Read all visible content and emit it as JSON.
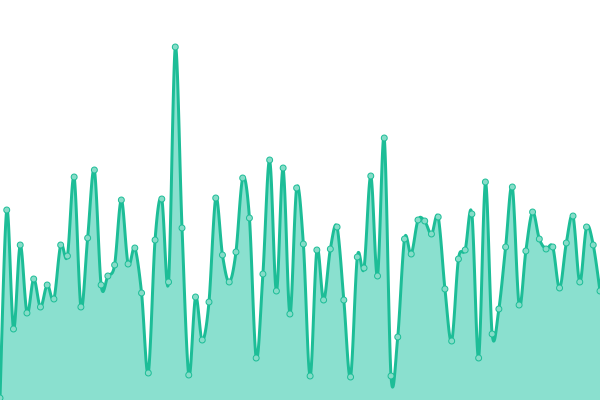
{
  "chart_data": {
    "type": "area",
    "title": "",
    "xlabel": "",
    "ylabel": "",
    "axes_visible": false,
    "grid": false,
    "legend": "none",
    "smooth": true,
    "markers": true,
    "ylim": [
      0,
      400
    ],
    "colors": {
      "line": "#1dbd97",
      "fill": "#8ae0cf",
      "marker_fill": "#86dcc8",
      "marker_stroke": "#1dbd97"
    },
    "values": [
      2,
      190,
      71,
      155,
      87,
      121,
      93,
      115,
      101,
      155,
      144,
      223,
      93,
      162,
      230,
      115,
      124,
      135,
      200,
      136,
      152,
      107,
      27,
      160,
      201,
      118,
      353,
      172,
      25,
      103,
      60,
      98,
      202,
      145,
      118,
      148,
      222,
      182,
      42,
      126,
      240,
      109,
      232,
      86,
      212,
      156,
      24,
      150,
      100,
      151,
      173,
      100,
      23,
      143,
      132,
      224,
      124,
      262,
      24,
      63,
      161,
      146,
      180,
      179,
      166,
      183,
      111,
      59,
      141,
      150,
      186,
      42,
      218,
      66,
      91,
      153,
      213,
      95,
      149,
      188,
      161,
      151,
      153,
      112,
      157,
      184,
      118,
      173,
      155,
      109
    ]
  }
}
